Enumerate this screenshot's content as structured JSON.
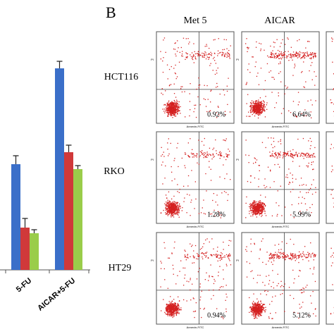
{
  "panel_b_label": "B",
  "columns": [
    "Met 5",
    "AICAR"
  ],
  "x_axis_label": "Annexin-FITC",
  "y_axis_label": "PI",
  "rows": [
    {
      "label": "HCT116",
      "percentages": [
        "0.92%",
        "6.64%"
      ]
    },
    {
      "label": "RKO",
      "percentages": [
        "1.28%",
        "5.99%"
      ]
    },
    {
      "label": "HT29",
      "percentages": [
        "0.94%",
        "5.12%"
      ]
    }
  ],
  "chart_data": {
    "type": "bar",
    "categories": [
      "5-FU",
      "AICAR+5-FU"
    ],
    "series": [
      {
        "color": "#3b6fc9",
        "values": [
          150,
          286
        ],
        "errors": [
          12,
          10
        ]
      },
      {
        "color": "#d0393a",
        "values": [
          60,
          167
        ],
        "errors": [
          13,
          10
        ]
      },
      {
        "color": "#9acd4a",
        "values": [
          52,
          143
        ],
        "errors": [
          5,
          5
        ]
      }
    ]
  }
}
